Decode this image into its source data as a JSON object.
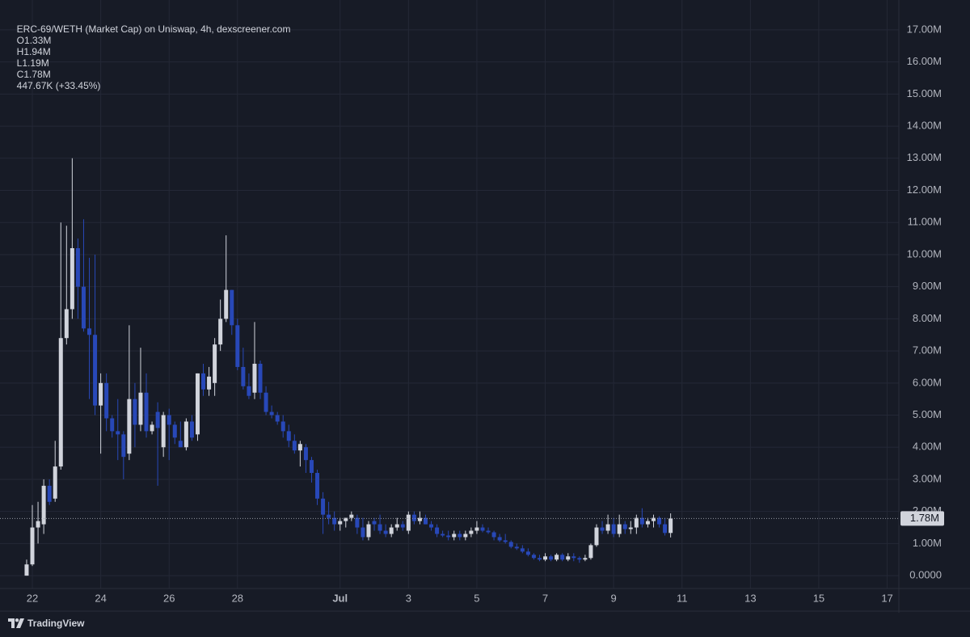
{
  "chart_data": {
    "type": "candlestick",
    "title": "ERC-69/WETH (Market Cap) on Uniswap, 4h, dexscreener.com",
    "ohlc_legend": [
      "O1.33M",
      "H1.94M",
      "L1.19M",
      "C1.78M"
    ],
    "change": "447.67K (+33.45%)",
    "brand": "TradingView",
    "up_color": "#d1d4dc",
    "down_color": "#2848b8",
    "grid": true,
    "xlim": [
      -22.7,
      608.2
    ],
    "ylim": [
      -0.4,
      17.93
    ],
    "xticks": [
      {
        "value": 0,
        "label": "22"
      },
      {
        "value": 48,
        "label": "24"
      },
      {
        "value": 96,
        "label": "26"
      },
      {
        "value": 144,
        "label": "28"
      },
      {
        "value": 216,
        "label": "Jul"
      },
      {
        "value": 264,
        "label": "3"
      },
      {
        "value": 312,
        "label": "5"
      },
      {
        "value": 360,
        "label": "7"
      },
      {
        "value": 408,
        "label": "9"
      },
      {
        "value": 456,
        "label": "11"
      },
      {
        "value": 504,
        "label": "13"
      },
      {
        "value": 552,
        "label": "15"
      },
      {
        "value": 600,
        "label": "17"
      }
    ],
    "yticks": [
      {
        "value": 0,
        "label": "0.0000"
      },
      {
        "value": 1,
        "label": "1.00M"
      },
      {
        "value": 2,
        "label": "2.00M"
      },
      {
        "value": 3,
        "label": "3.00M"
      },
      {
        "value": 4,
        "label": "4.00M"
      },
      {
        "value": 5,
        "label": "5.00M"
      },
      {
        "value": 6,
        "label": "6.00M"
      },
      {
        "value": 7,
        "label": "7.00M"
      },
      {
        "value": 8,
        "label": "8.00M"
      },
      {
        "value": 9,
        "label": "9.00M"
      },
      {
        "value": 10,
        "label": "10.00M"
      },
      {
        "value": 11,
        "label": "11.00M"
      },
      {
        "value": 12,
        "label": "12.00M"
      },
      {
        "value": 13,
        "label": "13.00M"
      },
      {
        "value": 14,
        "label": "14.00M"
      },
      {
        "value": 15,
        "label": "15.00M"
      },
      {
        "value": 16,
        "label": "16.00M"
      },
      {
        "value": 17,
        "label": "17.00M"
      }
    ],
    "last_price": {
      "value": 1.78,
      "label": "1.78M"
    },
    "x": [
      -4,
      0,
      4,
      8,
      12,
      16,
      20,
      24,
      28,
      32,
      36,
      40,
      44,
      48,
      52,
      56,
      60,
      64,
      68,
      72,
      76,
      80,
      84,
      88,
      92,
      96,
      100,
      104,
      108,
      112,
      116,
      120,
      124,
      128,
      132,
      136,
      140,
      144,
      148,
      152,
      156,
      160,
      164,
      168,
      172,
      176,
      180,
      184,
      188,
      192,
      196,
      200,
      204,
      208,
      212,
      216,
      220,
      224,
      228,
      232,
      236,
      240,
      244,
      248,
      252,
      256,
      260,
      264,
      268,
      272,
      276,
      280,
      284,
      288,
      292,
      296,
      300,
      304,
      308,
      312,
      316,
      320,
      324,
      328,
      332,
      336,
      340,
      344,
      348,
      352,
      356,
      360,
      364,
      368,
      372,
      376,
      380,
      384,
      388,
      392,
      396,
      400,
      404,
      408,
      412,
      416,
      420,
      424,
      428,
      432,
      436,
      440,
      444,
      448
    ],
    "open": [
      0,
      0.35,
      1.5,
      1.6,
      2.8,
      2.4,
      3.4,
      7.4,
      8.3,
      10.2,
      9,
      7.7,
      7.5,
      5.3,
      6.0,
      4.9,
      4.5,
      4.4,
      3.8,
      5.5,
      4.7,
      5.7,
      4.5,
      5.1,
      4.0,
      5.0,
      4.7,
      4.2,
      4.0,
      4.8,
      4.4,
      6.3,
      5.8,
      6.0,
      7.2,
      8.0,
      8.9,
      7.8,
      6.5,
      5.9,
      5.7,
      6.6,
      5.7,
      5.1,
      5.0,
      4.8,
      4.5,
      4.2,
      3.9,
      4.0,
      3.6,
      3.2,
      2.4,
      1.9,
      1.8,
      1.6,
      1.7,
      1.8,
      1.8,
      1.5,
      1.2,
      1.7,
      1.6,
      1.4,
      1.3,
      1.5,
      1.6,
      1.4,
      1.9,
      1.7,
      1.8,
      1.6,
      1.5,
      1.3,
      1.25,
      1.2,
      1.3,
      1.2,
      1.3,
      1.4,
      1.5,
      1.4,
      1.35,
      1.2,
      1.1,
      1.05,
      0.9,
      0.85,
      0.75,
      0.65,
      0.55,
      0.5,
      0.6,
      0.5,
      0.65,
      0.5,
      0.6,
      0.55,
      0.5,
      0.55,
      0.95,
      1.5,
      1.4,
      1.6,
      1.3,
      1.6,
      1.45,
      1.5,
      1.8,
      1.6,
      1.7,
      1.8,
      1.6,
      1.33
    ],
    "high": [
      0.5,
      2.2,
      2.3,
      3.0,
      3.0,
      4.2,
      11,
      10.9,
      13,
      10.5,
      11.1,
      9.9,
      10,
      6.3,
      6.3,
      5.0,
      5.5,
      4.5,
      7.8,
      6.0,
      7.1,
      6.3,
      4.8,
      5.4,
      5.1,
      5.2,
      4.8,
      4.8,
      4.9,
      5.0,
      6.3,
      6.6,
      6.5,
      7.4,
      8.6,
      10.6,
      8.9,
      8.0,
      7.1,
      6.3,
      7.9,
      6.7,
      5.9,
      5.3,
      5.1,
      5.0,
      4.7,
      4.4,
      4.2,
      4.1,
      3.7,
      3.3,
      2.6,
      2.3,
      2.0,
      1.8,
      1.8,
      2.0,
      1.9,
      1.8,
      1.7,
      1.8,
      1.9,
      1.6,
      1.6,
      1.8,
      1.7,
      2.0,
      2.0,
      2.0,
      1.9,
      1.7,
      1.6,
      1.4,
      1.4,
      1.4,
      1.4,
      1.4,
      1.5,
      1.7,
      1.6,
      1.5,
      1.4,
      1.3,
      1.3,
      1.1,
      1.0,
      0.95,
      0.85,
      0.7,
      0.65,
      0.7,
      0.65,
      0.7,
      0.7,
      0.7,
      0.7,
      0.6,
      0.65,
      1.0,
      1.6,
      1.7,
      1.9,
      1.8,
      1.9,
      1.7,
      1.7,
      1.9,
      2.1,
      1.8,
      1.9,
      1.85,
      1.8,
      1.94
    ],
    "low": [
      0,
      0.3,
      1.0,
      1.3,
      2.2,
      2.3,
      3.3,
      7.2,
      8,
      8,
      7.6,
      5.5,
      5,
      3.8,
      4.5,
      4.3,
      3.6,
      3.0,
      3.6,
      4.0,
      4.5,
      4.3,
      4.4,
      2.8,
      3.7,
      3.6,
      4.1,
      4.0,
      3.9,
      4.2,
      4.2,
      5.6,
      5.6,
      5.6,
      7.0,
      7.9,
      7.5,
      6.4,
      5.8,
      5.5,
      5.5,
      5.5,
      5.0,
      4.9,
      4.7,
      4.3,
      4.0,
      3.8,
      3.4,
      3.2,
      2.9,
      2.2,
      1.3,
      1.6,
      1.4,
      1.4,
      1.5,
      1.7,
      1.3,
      1.1,
      1.1,
      1.4,
      1.3,
      1.2,
      1.2,
      1.4,
      1.4,
      1.3,
      1.6,
      1.6,
      1.6,
      1.4,
      1.2,
      1.2,
      1.1,
      1.1,
      1.1,
      1.1,
      1.2,
      1.3,
      1.35,
      1.3,
      1.1,
      1.05,
      1.0,
      0.85,
      0.8,
      0.7,
      0.6,
      0.5,
      0.45,
      0.45,
      0.45,
      0.45,
      0.45,
      0.45,
      0.45,
      0.4,
      0.45,
      0.5,
      0.9,
      1.3,
      1.3,
      1.2,
      1.2,
      1.3,
      1.3,
      1.3,
      1.5,
      1.5,
      1.5,
      1.5,
      1.25,
      1.19
    ],
    "close": [
      0.35,
      1.5,
      1.7,
      2.8,
      2.3,
      3.4,
      7.4,
      8.3,
      10.2,
      9,
      7.7,
      7.5,
      5.3,
      6.0,
      4.9,
      4.5,
      4.4,
      3.7,
      5.5,
      4.7,
      5.7,
      4.5,
      4.7,
      4.6,
      5.0,
      4.7,
      4.3,
      4.0,
      4.8,
      4.3,
      6.3,
      5.8,
      6.2,
      7.2,
      8.0,
      8.9,
      7.8,
      6.5,
      5.9,
      5.6,
      6.6,
      5.7,
      5.1,
      5.0,
      4.8,
      4.5,
      4.2,
      3.9,
      4.1,
      3.6,
      3.2,
      2.4,
      1.9,
      1.8,
      1.6,
      1.7,
      1.8,
      1.9,
      1.5,
      1.2,
      1.6,
      1.6,
      1.4,
      1.3,
      1.5,
      1.6,
      1.5,
      1.9,
      1.7,
      1.8,
      1.6,
      1.5,
      1.3,
      1.25,
      1.2,
      1.3,
      1.2,
      1.3,
      1.4,
      1.5,
      1.4,
      1.35,
      1.2,
      1.1,
      1.05,
      0.9,
      0.85,
      0.75,
      0.65,
      0.55,
      0.5,
      0.6,
      0.5,
      0.65,
      0.5,
      0.6,
      0.55,
      0.5,
      0.55,
      0.95,
      1.5,
      1.4,
      1.6,
      1.3,
      1.6,
      1.45,
      1.5,
      1.8,
      1.6,
      1.7,
      1.8,
      1.6,
      1.33,
      1.78
    ]
  }
}
